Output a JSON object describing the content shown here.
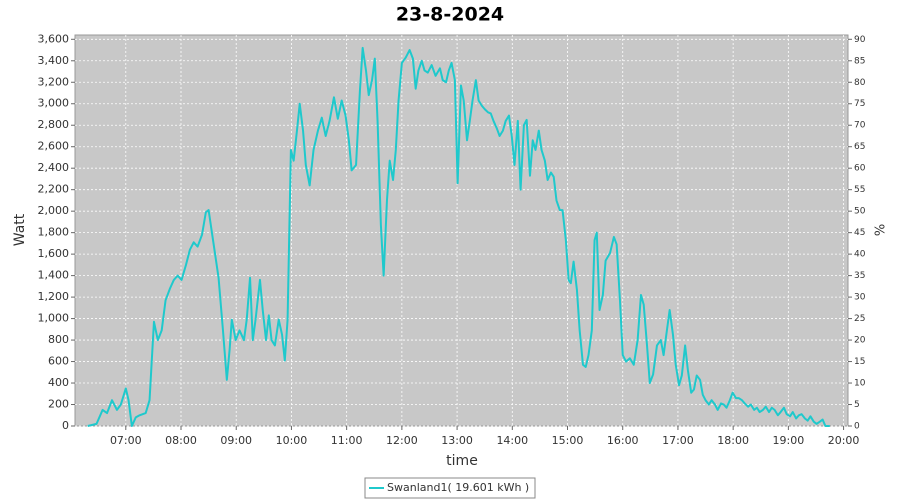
{
  "chart_data": {
    "type": "line",
    "title": "23-8-2024",
    "xlabel": "time",
    "ylabel": "Watt",
    "y2label": "%",
    "grid": true,
    "legend": "bottom",
    "xlim": [
      6.08,
      20.08
    ],
    "ylim": [
      0,
      3640
    ],
    "y2lim": [
      0,
      91
    ],
    "xticks": [
      {
        "value": 7,
        "label": "07:00"
      },
      {
        "value": 8,
        "label": "08:00"
      },
      {
        "value": 9,
        "label": "09:00"
      },
      {
        "value": 10,
        "label": "10:00"
      },
      {
        "value": 11,
        "label": "11:00"
      },
      {
        "value": 12,
        "label": "12:00"
      },
      {
        "value": 13,
        "label": "13:00"
      },
      {
        "value": 14,
        "label": "14:00"
      },
      {
        "value": 15,
        "label": "15:00"
      },
      {
        "value": 16,
        "label": "16:00"
      },
      {
        "value": 17,
        "label": "17:00"
      },
      {
        "value": 18,
        "label": "18:00"
      },
      {
        "value": 19,
        "label": "19:00"
      },
      {
        "value": 20,
        "label": "20:00"
      }
    ],
    "yticks": [
      0,
      200,
      400,
      600,
      800,
      {
        "value": 1000,
        "label": "1,000"
      },
      {
        "value": 1200,
        "label": "1,200"
      },
      {
        "value": 1400,
        "label": "1,400"
      },
      {
        "value": 1600,
        "label": "1,600"
      },
      {
        "value": 1800,
        "label": "1,800"
      },
      {
        "value": 2000,
        "label": "2,000"
      },
      {
        "value": 2200,
        "label": "2,200"
      },
      {
        "value": 2400,
        "label": "2,400"
      },
      {
        "value": 2600,
        "label": "2,600"
      },
      {
        "value": 2800,
        "label": "2,800"
      },
      {
        "value": 3000,
        "label": "3,000"
      },
      {
        "value": 3200,
        "label": "3,200"
      },
      {
        "value": 3400,
        "label": "3,400"
      },
      {
        "value": 3600,
        "label": "3,600"
      }
    ],
    "y2ticks": [
      0,
      5,
      10,
      15,
      20,
      25,
      30,
      35,
      40,
      45,
      50,
      55,
      60,
      65,
      70,
      75,
      80,
      85,
      90
    ],
    "x": [
      6.31,
      6.47,
      6.58,
      6.66,
      6.75,
      6.84,
      6.91,
      7.0,
      7.05,
      7.11,
      7.18,
      7.25,
      7.36,
      7.43,
      7.51,
      7.58,
      7.65,
      7.72,
      7.8,
      7.87,
      7.94,
      8.01,
      8.09,
      8.16,
      8.23,
      8.3,
      8.38,
      8.45,
      8.5,
      8.58,
      8.68,
      8.76,
      8.83,
      8.88,
      8.92,
      8.99,
      9.06,
      9.14,
      9.19,
      9.25,
      9.3,
      9.35,
      9.43,
      9.48,
      9.54,
      9.59,
      9.64,
      9.7,
      9.77,
      9.83,
      9.88,
      9.93,
      9.99,
      10.04,
      10.1,
      10.15,
      10.21,
      10.26,
      10.33,
      10.4,
      10.48,
      10.55,
      10.62,
      10.69,
      10.77,
      10.84,
      10.91,
      10.98,
      11.04,
      11.09,
      11.17,
      11.24,
      11.29,
      11.35,
      11.4,
      11.46,
      11.51,
      11.56,
      11.62,
      11.67,
      11.73,
      11.78,
      11.84,
      11.89,
      11.94,
      12.0,
      12.07,
      12.14,
      12.2,
      12.25,
      12.3,
      12.36,
      12.41,
      12.47,
      12.54,
      12.61,
      12.69,
      12.74,
      12.8,
      12.85,
      12.9,
      12.96,
      13.01,
      13.07,
      13.12,
      13.18,
      13.23,
      13.28,
      13.34,
      13.39,
      13.45,
      13.5,
      13.56,
      13.61,
      13.66,
      13.72,
      13.77,
      13.83,
      13.88,
      13.94,
      13.99,
      14.04,
      14.1,
      14.15,
      14.21,
      14.26,
      14.32,
      14.37,
      14.42,
      14.48,
      14.53,
      14.59,
      14.64,
      14.7,
      14.75,
      14.8,
      14.86,
      14.91,
      14.97,
      15.02,
      15.06,
      15.11,
      15.17,
      15.22,
      15.28,
      15.33,
      15.38,
      15.44,
      15.49,
      15.53,
      15.58,
      15.64,
      15.69,
      15.77,
      15.84,
      15.89,
      15.95,
      16.0,
      16.06,
      16.13,
      16.2,
      16.27,
      16.33,
      16.38,
      16.44,
      16.49,
      16.55,
      16.62,
      16.69,
      16.74,
      16.8,
      16.85,
      16.91,
      16.96,
      17.02,
      17.07,
      17.13,
      17.18,
      17.24,
      17.29,
      17.34,
      17.4,
      17.45,
      17.5,
      17.56,
      17.61,
      17.67,
      17.72,
      17.78,
      17.83,
      17.88,
      17.94,
      17.99,
      18.05,
      18.1,
      18.16,
      18.21,
      18.27,
      18.32,
      18.38,
      18.43,
      18.48,
      18.54,
      18.59,
      18.65,
      18.7,
      18.75,
      18.81,
      18.86,
      18.92,
      18.97,
      19.03,
      19.08,
      19.14,
      19.19,
      19.24,
      19.3,
      19.35,
      19.4,
      19.46,
      19.51,
      19.57,
      19.62,
      19.67,
      19.75
    ],
    "series": [
      {
        "name": "Swanland1( 19.601 kWh )",
        "color": "#1fc9cc",
        "values": [
          0,
          20,
          150,
          120,
          240,
          150,
          200,
          350,
          240,
          0,
          80,
          100,
          120,
          240,
          970,
          800,
          890,
          1170,
          1280,
          1360,
          1400,
          1360,
          1500,
          1640,
          1710,
          1670,
          1780,
          1990,
          2010,
          1730,
          1380,
          890,
          430,
          710,
          990,
          800,
          890,
          800,
          990,
          1380,
          800,
          990,
          1360,
          1080,
          800,
          1030,
          800,
          750,
          990,
          850,
          610,
          990,
          2570,
          2470,
          2750,
          3000,
          2750,
          2430,
          2240,
          2570,
          2750,
          2870,
          2700,
          2840,
          3060,
          2860,
          3030,
          2890,
          2660,
          2380,
          2430,
          3120,
          3520,
          3310,
          3080,
          3220,
          3420,
          2840,
          1870,
          1400,
          2100,
          2470,
          2290,
          2570,
          3030,
          3380,
          3430,
          3500,
          3420,
          3140,
          3310,
          3400,
          3310,
          3290,
          3360,
          3260,
          3330,
          3220,
          3200,
          3310,
          3380,
          3220,
          2260,
          3170,
          3030,
          2660,
          2840,
          3030,
          3220,
          3030,
          2980,
          2950,
          2920,
          2910,
          2840,
          2770,
          2700,
          2750,
          2840,
          2890,
          2700,
          2430,
          2840,
          2200,
          2800,
          2850,
          2330,
          2660,
          2570,
          2750,
          2570,
          2470,
          2290,
          2360,
          2320,
          2100,
          2010,
          2010,
          1730,
          1360,
          1330,
          1530,
          1270,
          890,
          570,
          550,
          660,
          890,
          1730,
          1800,
          1080,
          1220,
          1540,
          1610,
          1760,
          1690,
          1170,
          660,
          600,
          630,
          570,
          800,
          1220,
          1130,
          750,
          400,
          480,
          750,
          800,
          660,
          890,
          1080,
          850,
          570,
          380,
          470,
          750,
          520,
          310,
          340,
          470,
          430,
          290,
          240,
          200,
          240,
          200,
          150,
          210,
          200,
          170,
          240,
          310,
          260,
          260,
          240,
          210,
          180,
          200,
          150,
          170,
          130,
          150,
          180,
          130,
          170,
          150,
          100,
          130,
          170,
          110,
          90,
          130,
          70,
          100,
          110,
          70,
          50,
          90,
          40,
          20,
          40,
          60,
          0,
          0
        ]
      }
    ]
  }
}
